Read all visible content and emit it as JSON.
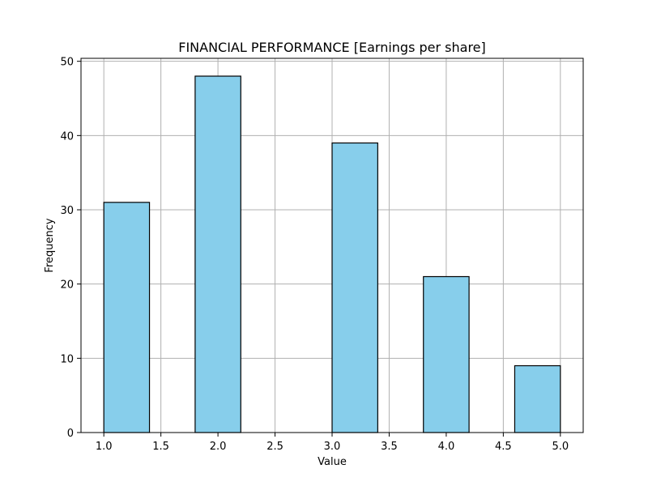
{
  "chart_data": {
    "type": "bar",
    "title": "FINANCIAL PERFORMANCE [Earnings per share]",
    "xlabel": "Value",
    "ylabel": "Frequency",
    "xlim": [
      0.8,
      5.2
    ],
    "ylim": [
      0,
      50.4
    ],
    "xticks": [
      "1.0",
      "1.5",
      "2.0",
      "2.5",
      "3.0",
      "3.5",
      "4.0",
      "4.5",
      "5.0"
    ],
    "yticks": [
      "0",
      "10",
      "20",
      "30",
      "40",
      "50"
    ],
    "grid": true,
    "bins": [
      {
        "x0": 1.0,
        "x1": 1.4,
        "value": 31
      },
      {
        "x0": 1.4,
        "x1": 1.8,
        "value": 0
      },
      {
        "x0": 1.8,
        "x1": 2.2,
        "value": 48
      },
      {
        "x0": 2.2,
        "x1": 2.6,
        "value": 0
      },
      {
        "x0": 2.6,
        "x1": 3.0,
        "value": 0
      },
      {
        "x0": 3.0,
        "x1": 3.4,
        "value": 39
      },
      {
        "x0": 3.4,
        "x1": 3.8,
        "value": 0
      },
      {
        "x0": 3.8,
        "x1": 4.2,
        "value": 21
      },
      {
        "x0": 4.2,
        "x1": 4.6,
        "value": 0
      },
      {
        "x0": 4.6,
        "x1": 5.0,
        "value": 9
      }
    ],
    "bar_color": "#87CEEB",
    "edge_color": "#000000",
    "grid_color": "#b0b0b0"
  }
}
